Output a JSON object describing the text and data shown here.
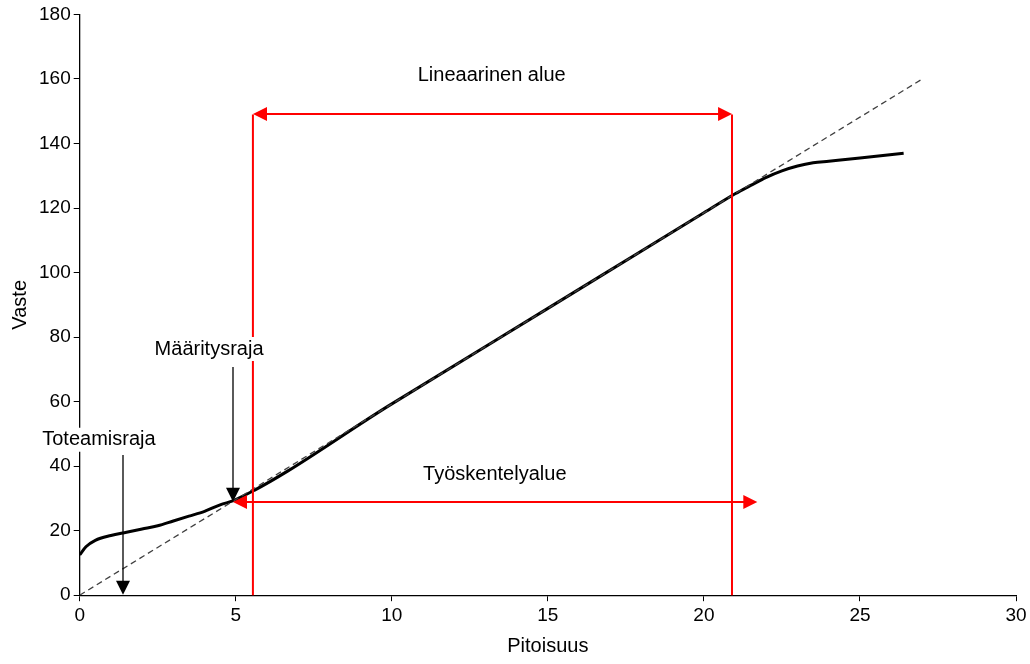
{
  "chart_data": {
    "type": "line",
    "xlabel": "Pitoisuus",
    "ylabel": "Vaste",
    "xlim": [
      0,
      30
    ],
    "xticks": [
      0,
      5,
      10,
      15,
      20,
      25,
      30
    ],
    "ylim": [
      0,
      180
    ],
    "yticks": [
      0,
      20,
      40,
      60,
      80,
      100,
      120,
      140,
      160,
      180
    ],
    "grid": false,
    "legend": false,
    "marker": "none",
    "series": [
      {
        "type": "line",
        "color": "#404040",
        "line_style": "dashed",
        "x": [
          0,
          27
        ],
        "values": [
          0,
          160
        ]
      },
      {
        "type": "line",
        "color": "#000000",
        "line_style": "solid",
        "x": [
          0,
          0.2,
          0.5,
          1,
          1.5,
          2,
          2.5,
          3,
          3.5,
          4,
          4.5,
          5,
          10,
          15,
          20,
          21,
          21.5,
          22,
          22.5,
          23,
          23.5,
          24,
          25,
          26.4
        ],
        "values": [
          12.5,
          15,
          17,
          18.5,
          19.5,
          20.5,
          21.5,
          23,
          24.5,
          26,
          28,
          29.6,
          59.3,
          88.9,
          118.5,
          124.4,
          127,
          129.5,
          131.5,
          133,
          134,
          134.5,
          135.5,
          137
        ]
      }
    ],
    "ref_lines": [
      {
        "axis": "x",
        "value": 5.55,
        "color": "#ff0000"
      },
      {
        "axis": "x",
        "value": 20.9,
        "color": "#ff0000"
      }
    ],
    "annotations": [
      "Määritysraja",
      "Toteamisraja",
      "Lineaarinen alue",
      "Työskentelyalue"
    ]
  }
}
